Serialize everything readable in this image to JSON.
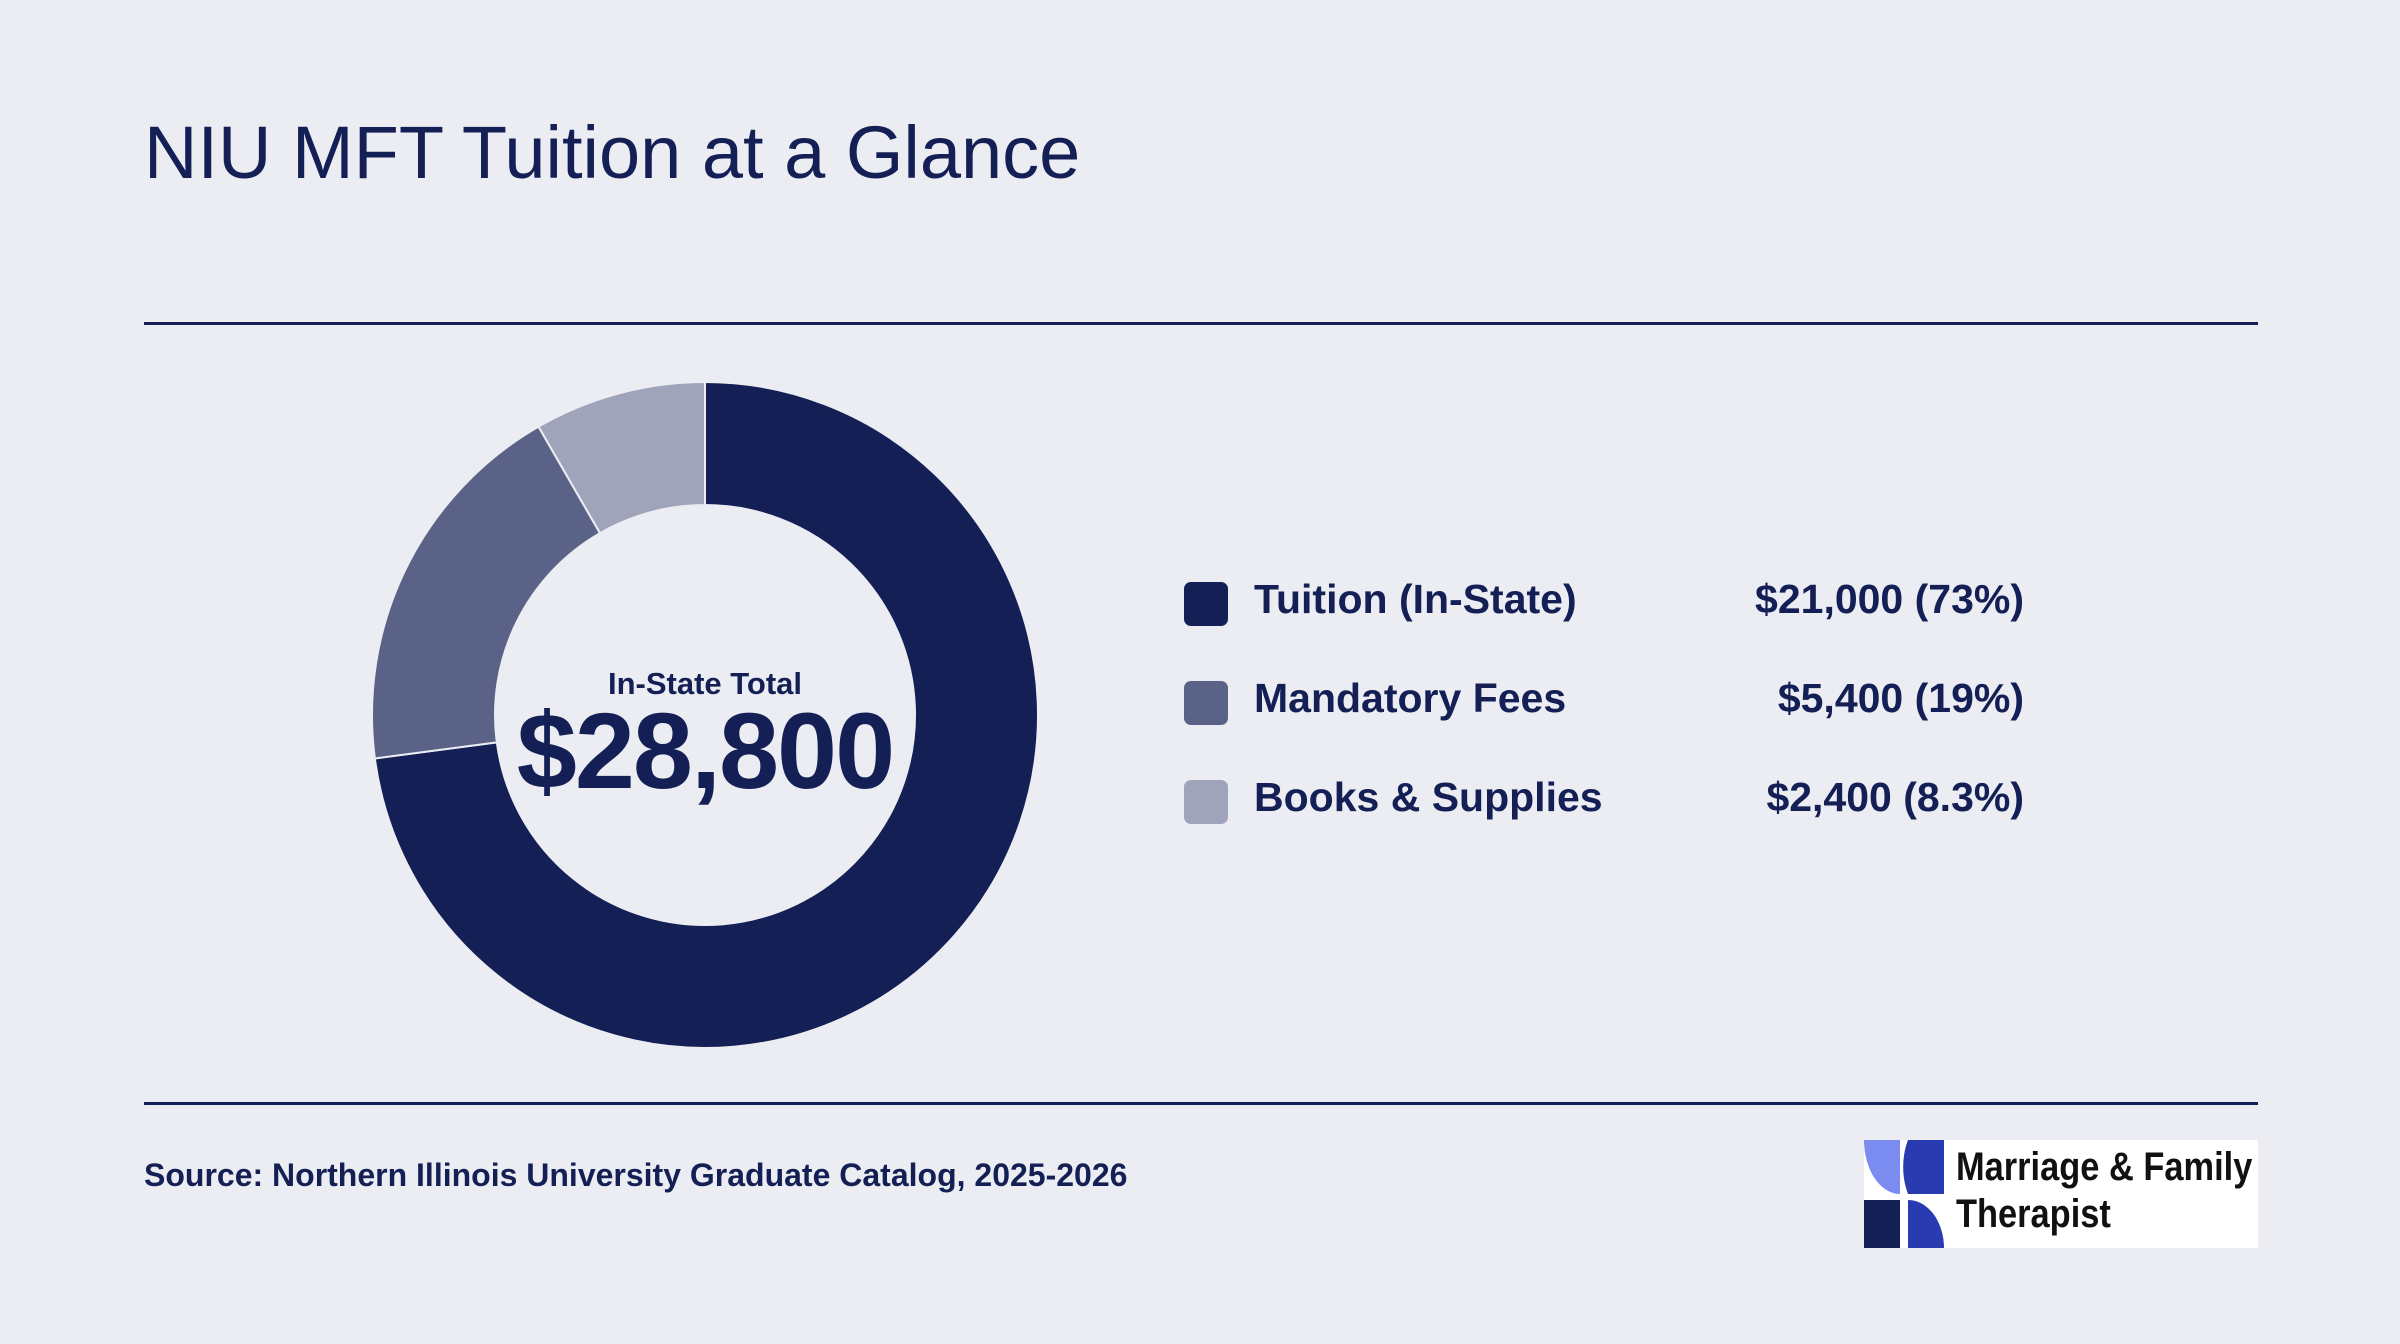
{
  "title": "NIU MFT Tuition at a Glance",
  "chart_data": {
    "type": "pie",
    "variant": "donut",
    "center_label": "In-State Total",
    "center_value": "$28,800",
    "total": 28800,
    "slices": [
      {
        "name": "Tuition (In-State)",
        "value": 21000,
        "display": "$21,000 (73%)",
        "color": "#131f55"
      },
      {
        "name": "Mandatory Fees",
        "value": 5400,
        "display": "$5,400 (19%)",
        "color": "#5a6287"
      },
      {
        "name": "Books & Supplies",
        "value": 2400,
        "display": "$2,400 (8.3%)",
        "color": "#a0a4bb"
      }
    ],
    "legend_placement": "right"
  },
  "source": "Source: Northern Illinois University Graduate Catalog, 2025-2026",
  "logo": {
    "line1": "Marriage & Family",
    "line2": "Therapist",
    "colors": {
      "light": "#7b8cf0",
      "dark": "#131f55",
      "mid": "#2a3ab0"
    }
  },
  "colors": {
    "background": "#ecedf2",
    "text": "#131f55"
  }
}
